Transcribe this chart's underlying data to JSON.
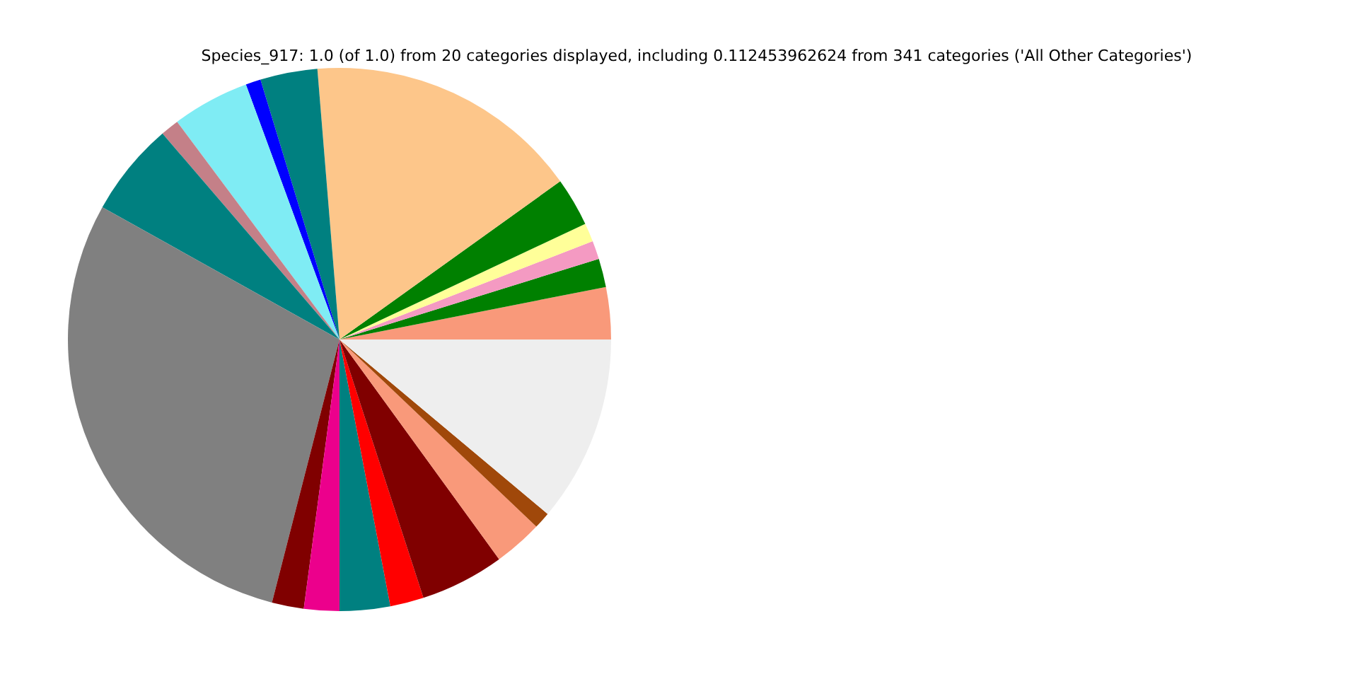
{
  "chart_data": {
    "type": "pie",
    "title": "Species_917: 1.0 (of 1.0) from 20 categories displayed, including 0.112453962624 from 341 categories ('All Other Categories')",
    "categories": [
      null,
      null,
      null,
      null,
      null,
      null,
      null,
      null,
      null,
      null,
      null,
      null,
      null,
      null,
      null,
      null,
      null,
      null,
      null,
      null
    ],
    "values": [
      3.1,
      1.7,
      1.1,
      1.1,
      2.9,
      16.4,
      3.4,
      0.9,
      4.6,
      1.1,
      5.6,
      29.1,
      1.9,
      2.1,
      3.0,
      2.0,
      5.0,
      2.9,
      1.0,
      11.1
    ],
    "colors": [
      "#f9997a",
      "#008000",
      "#f49ac2",
      "#ffff99",
      "#008000",
      "#fdc68a",
      "#008080",
      "#0000ff",
      "#7fecf4",
      "#c48088",
      "#008080",
      "#808080",
      "#800000",
      "#ec008c",
      "#008080",
      "#ff0000",
      "#800000",
      "#f9997a",
      "#a0480a",
      "#eeeeee"
    ],
    "legend": false
  }
}
